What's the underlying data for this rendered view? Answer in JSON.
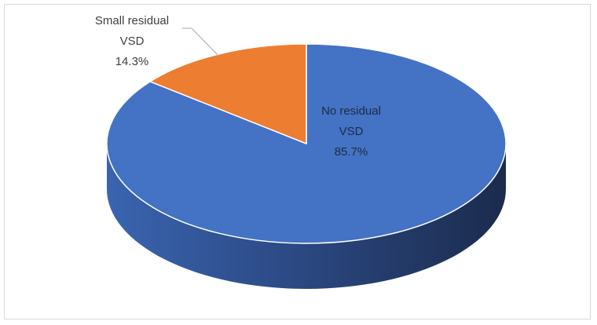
{
  "chart_data": {
    "type": "pie",
    "style": "3d",
    "title": "",
    "slices": [
      {
        "name": "No residual VSD",
        "label_line1": "No residual",
        "label_line2": "VSD",
        "value": 85.7,
        "value_label": "85.7%",
        "color": "#4472c4",
        "side_color": "#2e4f8f"
      },
      {
        "name": "Small residual VSD",
        "label_line1": "Small residual",
        "label_line2": "VSD",
        "value": 14.3,
        "value_label": "14.3%",
        "color": "#ed7d31"
      }
    ],
    "legend": "none"
  }
}
